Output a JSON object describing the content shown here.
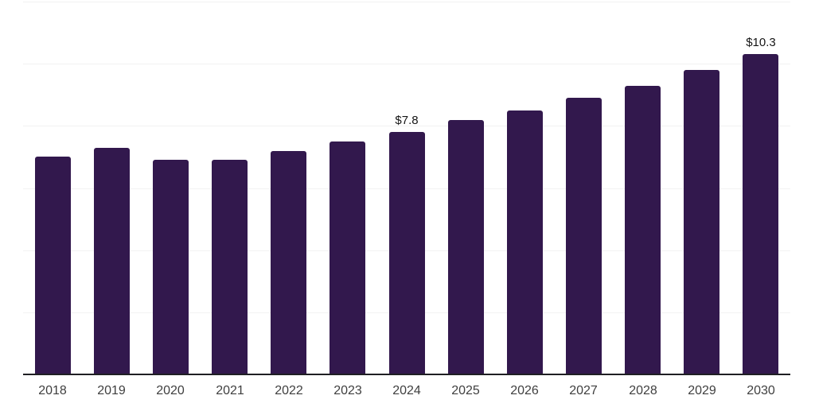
{
  "chart_data": {
    "type": "bar",
    "categories": [
      "2018",
      "2019",
      "2020",
      "2021",
      "2022",
      "2023",
      "2024",
      "2025",
      "2026",
      "2027",
      "2028",
      "2029",
      "2030"
    ],
    "values": [
      7.0,
      7.3,
      6.9,
      6.9,
      7.2,
      7.5,
      7.8,
      8.2,
      8.5,
      8.9,
      9.3,
      9.8,
      10.3
    ],
    "data_labels": [
      {
        "category": "2024",
        "text": "$7.8"
      },
      {
        "category": "2030",
        "text": "$10.3"
      }
    ],
    "title": "",
    "xlabel": "",
    "ylabel": "",
    "ylim": [
      0,
      12
    ],
    "gridline_values": [
      2,
      4,
      6,
      8,
      10,
      12
    ],
    "grid": true,
    "legend_position": "none",
    "colors": {
      "bar": "#32184D",
      "gridline": "#f2f2f2",
      "axis_line": "#1f1f23",
      "category_label": "#3f3f3f",
      "data_label": "#151515"
    }
  }
}
